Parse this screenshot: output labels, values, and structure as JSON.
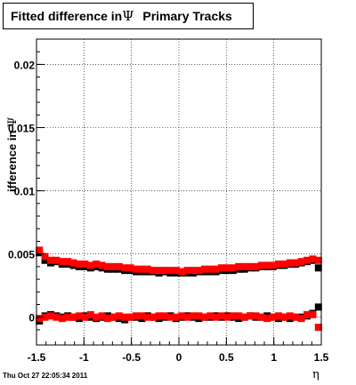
{
  "title": {
    "prefix": "Fitted difference in",
    "symbol": "Ψ",
    "suffix": "Primary Tracks"
  },
  "timestamp": "Thu Oct 27 22:05:34 2011",
  "chart_data": {
    "type": "scatter",
    "title": "Fitted difference in Ψ   Primary Tracks",
    "xlabel": "η",
    "ylabel": "ifference in Ψ",
    "ylabel_symbol": "Ψ",
    "ylabel_text": "ifference in ",
    "xlim": [
      -1.5,
      1.5
    ],
    "ylim": [
      -0.0022,
      0.022
    ],
    "xticks": [
      -1.5,
      -1,
      -0.5,
      0,
      0.5,
      1,
      1.5
    ],
    "xtick_labels": [
      "-1.5",
      "-1",
      "-0.5",
      "0",
      "0.5",
      "1",
      "1.5"
    ],
    "yticks": [
      0,
      0.005,
      0.01,
      0.015,
      0.02
    ],
    "ytick_labels": [
      "0",
      "0.005",
      "0.01",
      "0.015",
      "0.02"
    ],
    "grid": true,
    "colors": {
      "black_series": "#000000",
      "red_series": "#ff0000"
    },
    "series": [
      {
        "color": "black",
        "x": [
          -1.47,
          -1.41,
          -1.35,
          -1.29,
          -1.23,
          -1.17,
          -1.11,
          -1.05,
          -0.99,
          -0.93,
          -0.87,
          -0.81,
          -0.75,
          -0.69,
          -0.63,
          -0.57,
          -0.51,
          -0.45,
          -0.39,
          -0.33,
          -0.27,
          -0.21,
          -0.15,
          -0.09,
          -0.03,
          0.03,
          0.09,
          0.15,
          0.21,
          0.27,
          0.33,
          0.39,
          0.45,
          0.51,
          0.57,
          0.63,
          0.69,
          0.75,
          0.81,
          0.87,
          0.93,
          0.99,
          1.05,
          1.11,
          1.17,
          1.23,
          1.29,
          1.35,
          1.41,
          1.47
        ],
        "y": [
          0.0051,
          0.0045,
          0.0043,
          0.0044,
          0.0042,
          0.0042,
          0.0041,
          0.004,
          0.004,
          0.0039,
          0.004,
          0.0039,
          0.0038,
          0.0038,
          0.0038,
          0.0037,
          0.0037,
          0.0036,
          0.0036,
          0.0036,
          0.0036,
          0.0035,
          0.0036,
          0.0035,
          0.0035,
          0.0035,
          0.0035,
          0.0035,
          0.0036,
          0.0036,
          0.0036,
          0.0036,
          0.0037,
          0.0037,
          0.0037,
          0.0038,
          0.0038,
          0.0039,
          0.0039,
          0.004,
          0.004,
          0.004,
          0.0041,
          0.0041,
          0.0042,
          0.0042,
          0.0043,
          0.0044,
          0.0045,
          0.0039
        ]
      },
      {
        "color": "red",
        "x": [
          -1.47,
          -1.41,
          -1.35,
          -1.29,
          -1.23,
          -1.17,
          -1.11,
          -1.05,
          -0.99,
          -0.93,
          -0.87,
          -0.81,
          -0.75,
          -0.69,
          -0.63,
          -0.57,
          -0.51,
          -0.45,
          -0.39,
          -0.33,
          -0.27,
          -0.21,
          -0.15,
          -0.09,
          -0.03,
          0.03,
          0.09,
          0.15,
          0.21,
          0.27,
          0.33,
          0.39,
          0.45,
          0.51,
          0.57,
          0.63,
          0.69,
          0.75,
          0.81,
          0.87,
          0.93,
          0.99,
          1.05,
          1.11,
          1.17,
          1.23,
          1.29,
          1.35,
          1.41,
          1.47
        ],
        "y": [
          0.0053,
          0.0048,
          0.0045,
          0.0045,
          0.0044,
          0.0044,
          0.0043,
          0.0042,
          0.0042,
          0.0041,
          0.0042,
          0.0041,
          0.004,
          0.004,
          0.004,
          0.0039,
          0.0039,
          0.0038,
          0.0038,
          0.0038,
          0.0037,
          0.0037,
          0.0037,
          0.0037,
          0.0037,
          0.0036,
          0.0037,
          0.0037,
          0.0037,
          0.0038,
          0.0038,
          0.0038,
          0.0039,
          0.0039,
          0.0039,
          0.004,
          0.004,
          0.004,
          0.004,
          0.0041,
          0.0041,
          0.0041,
          0.0042,
          0.0042,
          0.0043,
          0.0043,
          0.0044,
          0.0045,
          0.0046,
          0.0045
        ]
      },
      {
        "color": "black",
        "x": [
          -1.47,
          -1.41,
          -1.35,
          -1.29,
          -1.23,
          -1.17,
          -1.11,
          -1.05,
          -0.99,
          -0.93,
          -0.87,
          -0.81,
          -0.75,
          -0.69,
          -0.63,
          -0.57,
          -0.51,
          -0.45,
          -0.39,
          -0.33,
          -0.27,
          -0.21,
          -0.15,
          -0.09,
          -0.03,
          0.03,
          0.09,
          0.15,
          0.21,
          0.27,
          0.33,
          0.39,
          0.45,
          0.51,
          0.57,
          0.63,
          0.69,
          0.75,
          0.81,
          0.87,
          0.93,
          0.99,
          1.05,
          1.11,
          1.17,
          1.23,
          1.29,
          1.35,
          1.41,
          1.47
        ],
        "y": [
          -0.0003,
          0.0001,
          0.0002,
          0.0001,
          0.0,
          0.0001,
          0.0,
          -0.0001,
          0.0001,
          0.0,
          -0.0001,
          0.0,
          0.0001,
          0.0,
          -0.0001,
          -0.0002,
          0.0,
          0.0,
          -0.0001,
          0.0001,
          0.0,
          -0.0001,
          0.0,
          0.0001,
          -0.0001,
          0.0,
          0.0001,
          0.0,
          -0.0001,
          0.0,
          0.0,
          0.0001,
          0.0,
          0.0001,
          0.0,
          -0.0001,
          0.0,
          0.0001,
          0.0,
          0.0,
          0.0001,
          0.0,
          -0.0001,
          0.0,
          -0.0001,
          0.0,
          0.0,
          0.0001,
          0.0003,
          0.0008
        ]
      },
      {
        "color": "red",
        "x": [
          -1.47,
          -1.41,
          -1.35,
          -1.29,
          -1.23,
          -1.17,
          -1.11,
          -1.05,
          -0.99,
          -0.93,
          -0.87,
          -0.81,
          -0.75,
          -0.69,
          -0.63,
          -0.57,
          -0.51,
          -0.45,
          -0.39,
          -0.33,
          -0.27,
          -0.21,
          -0.15,
          -0.09,
          -0.03,
          0.03,
          0.09,
          0.15,
          0.21,
          0.27,
          0.33,
          0.39,
          0.45,
          0.51,
          0.57,
          0.63,
          0.69,
          0.75,
          0.81,
          0.87,
          0.93,
          0.99,
          1.05,
          1.11,
          1.17,
          1.23,
          1.29,
          1.35,
          1.41,
          1.47
        ],
        "y": [
          -0.0001,
          0.0,
          0.0001,
          0.0,
          -0.0001,
          0.0,
          0.0,
          0.0001,
          0.0,
          0.0002,
          0.0,
          0.0001,
          -0.0001,
          0.0,
          0.0001,
          0.0,
          0.0,
          0.0001,
          0.0001,
          0.0,
          0.0,
          0.0001,
          0.0001,
          0.0,
          0.0,
          0.0001,
          0.0,
          0.0001,
          0.0001,
          0.0,
          0.0001,
          0.0,
          0.0001,
          0.0,
          0.0001,
          0.0001,
          0.0,
          0.0001,
          0.0001,
          0.0,
          -0.0001,
          0.0,
          0.0001,
          0.0,
          0.0001,
          0.0,
          -0.0001,
          0.0002,
          0.0002,
          -0.0008
        ]
      }
    ]
  }
}
